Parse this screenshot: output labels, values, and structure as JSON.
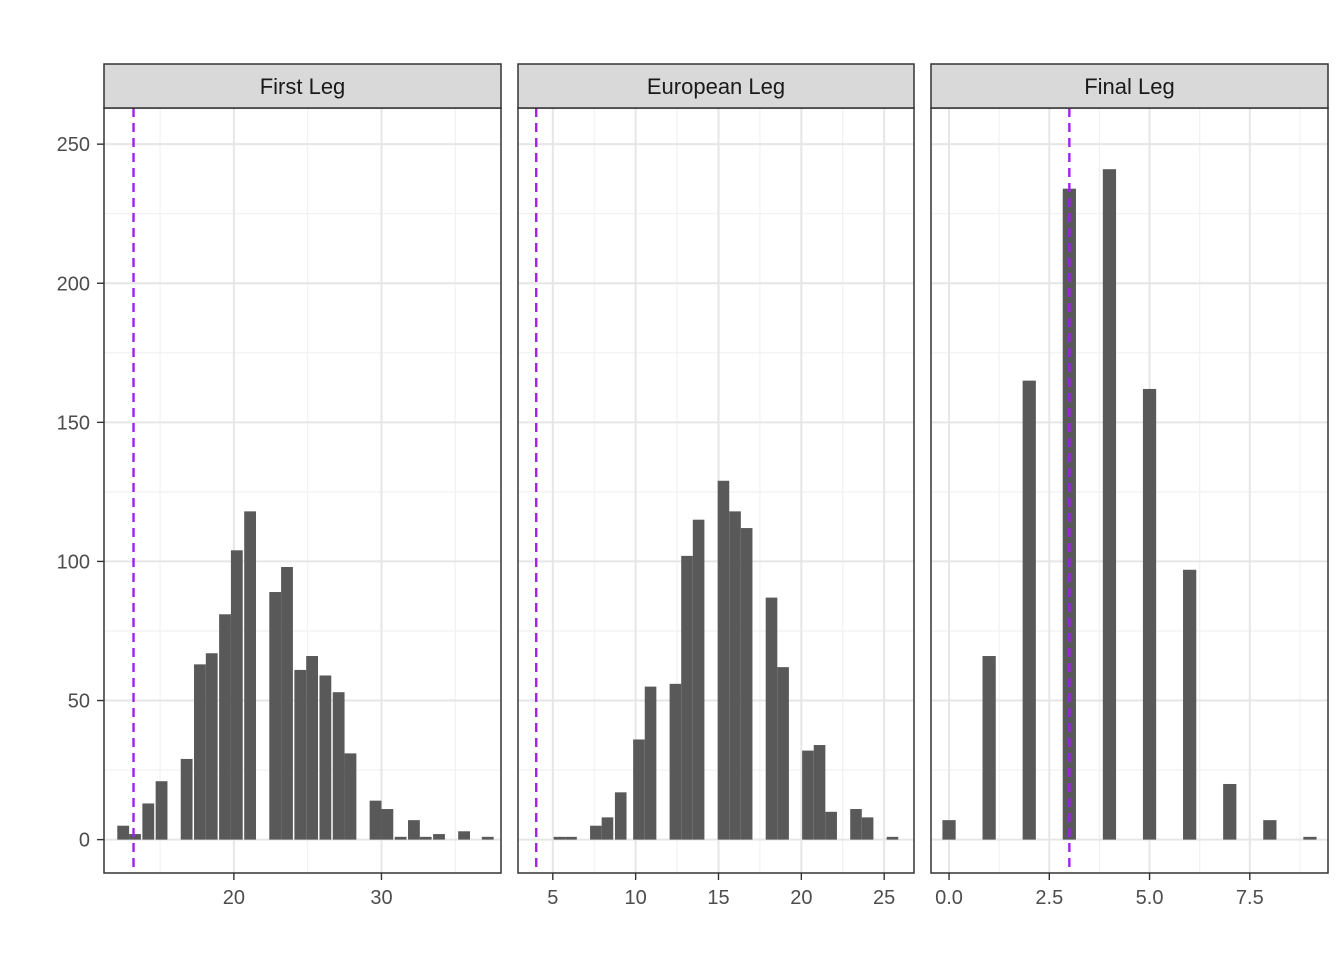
{
  "chart_data": {
    "type": "bar",
    "layout": "facet_wrap",
    "y_ticks": [
      0,
      50,
      100,
      150,
      200,
      250
    ],
    "ylim": [
      -12,
      263
    ],
    "grid": true,
    "bar_color": "#595959",
    "reference_line_color": "#a020f0",
    "panel_background": "#ffffff",
    "strip_color": "#d9d9d9",
    "panels": [
      {
        "label": "First Leg",
        "xlim": [
          11.2,
          38.1
        ],
        "x_ticks": [
          20,
          30
        ],
        "x_tick_labels": [
          "20",
          "30"
        ],
        "minor_x": [
          15,
          25,
          35
        ],
        "reference_x": 13.2,
        "bins": [
          {
            "x": 12.5,
            "count": 5
          },
          {
            "x": 13.3,
            "count": 2
          },
          {
            "x": 14.2,
            "count": 13
          },
          {
            "x": 15.1,
            "count": 21
          },
          {
            "x": 16.8,
            "count": 29
          },
          {
            "x": 17.7,
            "count": 63
          },
          {
            "x": 18.5,
            "count": 67
          },
          {
            "x": 19.4,
            "count": 81
          },
          {
            "x": 20.2,
            "count": 104
          },
          {
            "x": 21.1,
            "count": 118
          },
          {
            "x": 22.8,
            "count": 89
          },
          {
            "x": 23.6,
            "count": 98
          },
          {
            "x": 24.5,
            "count": 61
          },
          {
            "x": 25.3,
            "count": 66
          },
          {
            "x": 26.2,
            "count": 59
          },
          {
            "x": 27.1,
            "count": 53
          },
          {
            "x": 27.9,
            "count": 31
          },
          {
            "x": 29.6,
            "count": 14
          },
          {
            "x": 30.4,
            "count": 11
          },
          {
            "x": 31.3,
            "count": 1
          },
          {
            "x": 32.2,
            "count": 7
          },
          {
            "x": 33.0,
            "count": 1
          },
          {
            "x": 33.9,
            "count": 2
          },
          {
            "x": 35.6,
            "count": 3
          },
          {
            "x": 37.2,
            "count": 1
          }
        ]
      },
      {
        "label": "European Leg",
        "xlim": [
          2.9,
          26.8
        ],
        "x_ticks": [
          5,
          10,
          15,
          20,
          25
        ],
        "x_tick_labels": [
          "5",
          "10",
          "15",
          "20",
          "25"
        ],
        "minor_x": [
          7.5,
          12.5,
          17.5,
          22.5
        ],
        "reference_x": 4.0,
        "bins": [
          {
            "x": 5.4,
            "count": 1
          },
          {
            "x": 6.1,
            "count": 1
          },
          {
            "x": 7.6,
            "count": 5
          },
          {
            "x": 8.3,
            "count": 8
          },
          {
            "x": 9.1,
            "count": 17
          },
          {
            "x": 10.2,
            "count": 36
          },
          {
            "x": 10.9,
            "count": 55
          },
          {
            "x": 12.4,
            "count": 56
          },
          {
            "x": 13.1,
            "count": 102
          },
          {
            "x": 13.8,
            "count": 115
          },
          {
            "x": 15.3,
            "count": 129
          },
          {
            "x": 16.0,
            "count": 118
          },
          {
            "x": 16.7,
            "count": 112
          },
          {
            "x": 18.2,
            "count": 87
          },
          {
            "x": 18.9,
            "count": 62
          },
          {
            "x": 20.4,
            "count": 32
          },
          {
            "x": 21.1,
            "count": 34
          },
          {
            "x": 21.8,
            "count": 10
          },
          {
            "x": 23.3,
            "count": 11
          },
          {
            "x": 24.0,
            "count": 8
          },
          {
            "x": 25.5,
            "count": 1
          }
        ]
      },
      {
        "label": "Final Leg",
        "xlim": [
          -0.45,
          9.45
        ],
        "x_ticks": [
          0,
          2.5,
          5,
          7.5
        ],
        "x_tick_labels": [
          "0.0",
          "2.5",
          "5.0",
          "7.5"
        ],
        "minor_x": [
          1.25,
          3.75,
          6.25,
          8.75
        ],
        "reference_x": 3.0,
        "bins": [
          {
            "x": 0,
            "count": 7
          },
          {
            "x": 1,
            "count": 66
          },
          {
            "x": 2,
            "count": 165
          },
          {
            "x": 3,
            "count": 234
          },
          {
            "x": 4,
            "count": 241
          },
          {
            "x": 5,
            "count": 162
          },
          {
            "x": 6,
            "count": 97
          },
          {
            "x": 7,
            "count": 20
          },
          {
            "x": 8,
            "count": 7
          },
          {
            "x": 9,
            "count": 1
          }
        ]
      }
    ]
  }
}
